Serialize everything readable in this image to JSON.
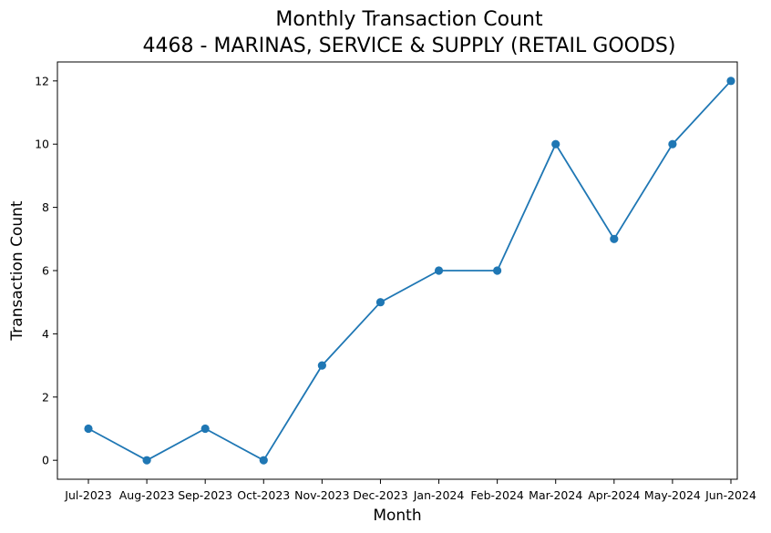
{
  "chart_data": {
    "type": "line",
    "title": [
      "Monthly Transaction Count",
      "4468 - MARINAS, SERVICE & SUPPLY (RETAIL GOODS)"
    ],
    "xlabel": "Month",
    "ylabel": "Transaction Count",
    "categories": [
      "Jul-2023",
      "Aug-2023",
      "Sep-2023",
      "Oct-2023",
      "Nov-2023",
      "Dec-2023",
      "Jan-2024",
      "Feb-2024",
      "Mar-2024",
      "Apr-2024",
      "May-2024",
      "Jun-2024"
    ],
    "series": [
      {
        "values": [
          1,
          0,
          1,
          0,
          3,
          5,
          6,
          6,
          10,
          7,
          10,
          12
        ],
        "color": "#1f77b4",
        "marker": "circle"
      }
    ],
    "yticks": [
      0,
      2,
      4,
      6,
      8,
      10,
      12
    ],
    "ylim": [
      -0.6,
      12.6
    ],
    "grid": false,
    "legend": "none"
  }
}
